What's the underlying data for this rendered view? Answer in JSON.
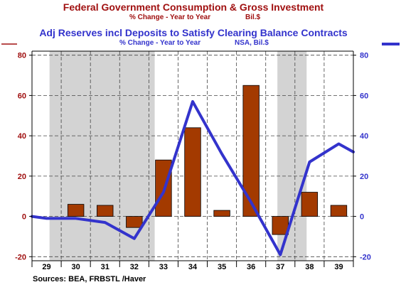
{
  "titles": {
    "series1_title": "Federal Government Consumption & Gross Investment",
    "series1_units": "% Change - Year to Year",
    "series1_source": "Bil.$",
    "series2_title": "Adj Reserves incl Deposits to Satisfy Clearing Balance Contracts",
    "series2_units": "% Change - Year to Year",
    "series2_source": "NSA, Bil.$"
  },
  "footer": {
    "sources": "Sources:  BEA, FRBSTL /Haver"
  },
  "colors": {
    "series1": "#a33a00",
    "series1_title": "#a01010",
    "series2": "#3333cc",
    "recession": "#d3d3d3"
  },
  "chart_data": {
    "type": "bar",
    "categories": [
      "29",
      "30",
      "31",
      "32",
      "33",
      "34",
      "35",
      "36",
      "37",
      "38",
      "39"
    ],
    "x_range": [
      1929,
      1940
    ],
    "series": [
      {
        "name": "Federal Government Consumption & Gross Investment",
        "type": "bar",
        "axis": "left",
        "x": [
          1930,
          1931,
          1932,
          1933,
          1934,
          1935,
          1936,
          1937,
          1938,
          1939
        ],
        "values": [
          6,
          5.5,
          -5.5,
          28,
          44,
          3,
          65,
          -9,
          12,
          5.5
        ]
      },
      {
        "name": "Adj Reserves incl Deposits to Satisfy Clearing Balance Contracts",
        "type": "line",
        "axis": "right",
        "x": [
          1929.0,
          1929.5,
          1930.5,
          1931.5,
          1932.5,
          1933.5,
          1934.5,
          1935.5,
          1936.5,
          1937.5,
          1938.5,
          1939.5,
          1940.0
        ],
        "values": [
          0,
          -1,
          -1,
          -3,
          -11,
          12,
          57,
          31,
          7,
          -19,
          27,
          36,
          32
        ]
      }
    ],
    "left_axis": {
      "ylim": [
        -22,
        82
      ],
      "ticks": [
        -20,
        0,
        20,
        40,
        60,
        80
      ]
    },
    "right_axis": {
      "ylim": [
        -22,
        82
      ],
      "ticks": [
        -20,
        0,
        20,
        40,
        60,
        80
      ]
    },
    "recessions": [
      [
        1929.6,
        1933.2
      ],
      [
        1937.4,
        1938.4
      ]
    ],
    "grid": true
  }
}
